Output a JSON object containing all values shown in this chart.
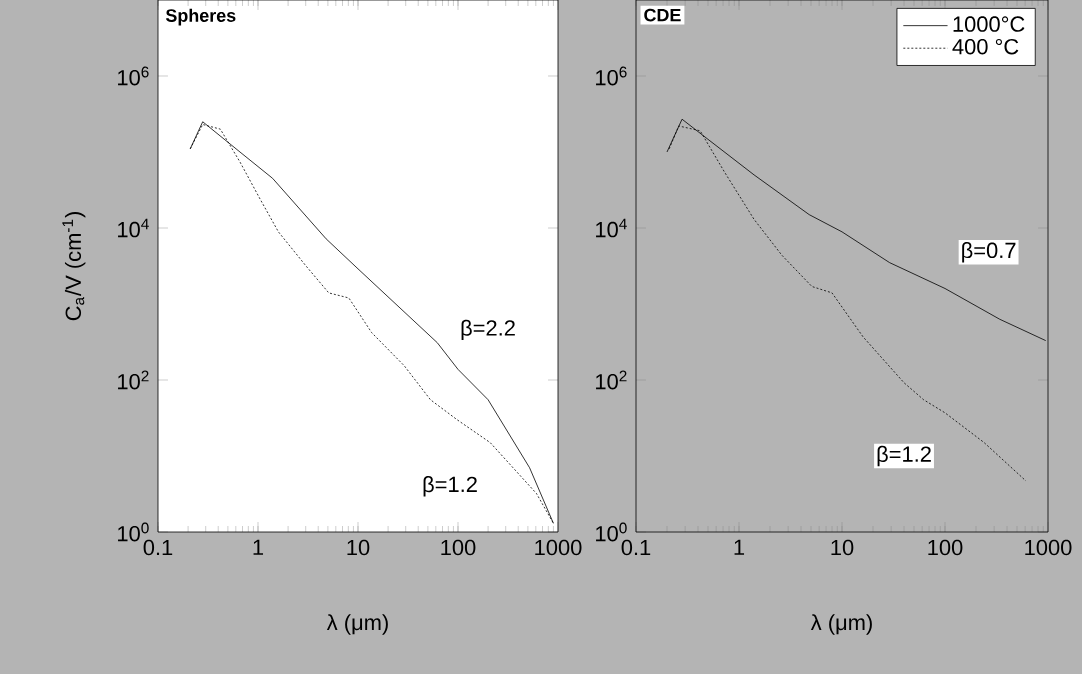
{
  "chart_data": [
    {
      "type": "line",
      "title": "Spheres",
      "xlabel": "λ  (μm)",
      "ylabel": "C$_{a}$/V  (cm$^{-1}$)",
      "log": "xy",
      "xlim": [
        0.1,
        1000
      ],
      "ylim": [
        1,
        10000000
      ],
      "xticks": [
        0.1,
        1,
        10,
        100,
        1000
      ],
      "yticks": [
        {
          "value": 1,
          "label": "10$^{0}$"
        },
        {
          "value": 100,
          "label": "10$^{2}$"
        },
        {
          "value": 10000,
          "label": "10$^{4}$"
        },
        {
          "value": 1000000,
          "label": "10$^{6}$"
        }
      ],
      "series": [
        {
          "color": "#000000",
          "line_style": "solid",
          "x": [
            0.21,
            0.28,
            0.66,
            1.4,
            4.8,
            10,
            62,
            100,
            200,
            520,
            900
          ],
          "values": [
            110000,
            250000,
            100000,
            45000,
            7200,
            2900,
            310,
            138,
            55,
            7,
            1.3
          ]
        },
        {
          "color": "#000000",
          "line_style": "dotted",
          "x": [
            0.21,
            0.28,
            0.42,
            0.66,
            1.05,
            1.6,
            3.0,
            5.1,
            8.1,
            13.7,
            29,
            53,
            98,
            210,
            610,
            900
          ],
          "values": [
            110000,
            230000,
            200000,
            74000,
            24000,
            8900,
            3200,
            1400,
            1200,
            420,
            154,
            55,
            30,
            15,
            3.2,
            1.3
          ]
        }
      ],
      "annotations": [
        "β=2.2",
        "β=1.2"
      ]
    },
    {
      "type": "line",
      "title": "CDE",
      "xlabel": "λ  (μm)",
      "log": "xy",
      "legend": "top right",
      "xlim": [
        0.1,
        1000
      ],
      "ylim": [
        1,
        10000000
      ],
      "xticks": [
        0.1,
        1,
        10,
        100,
        1000
      ],
      "yticks": [
        {
          "value": 1,
          "label": "10$^{0}$"
        },
        {
          "value": 100,
          "label": "10$^{2}$"
        },
        {
          "value": 10000,
          "label": "10$^{4}$"
        },
        {
          "value": 1000000,
          "label": "10$^{6}$"
        }
      ],
      "series": [
        {
          "name": "1000°C",
          "color": "#000000",
          "line_style": "solid",
          "x": [
            0.2,
            0.28,
            0.49,
            1.4,
            4.8,
            10,
            29,
            100,
            340,
            950
          ],
          "values": [
            100000,
            270000,
            150000,
            50000,
            15000,
            8900,
            3500,
            1600,
            630,
            330
          ]
        },
        {
          "name": "400 °C",
          "color": "#000000",
          "line_style": "dotted",
          "x": [
            0.21,
            0.26,
            0.42,
            0.72,
            1.4,
            2.6,
            5.1,
            8,
            16,
            40,
            62,
            100,
            240,
            610
          ],
          "values": [
            110000,
            220000,
            190000,
            55000,
            13000,
            4400,
            1700,
            1400,
            370,
            92,
            55,
            37,
            15,
            4.7
          ]
        }
      ],
      "annotations": [
        {
          "text": "β=0.7",
          "x": 265,
          "y": 4800
        },
        {
          "text": "β=1.2",
          "x": 40,
          "y": 10
        }
      ]
    }
  ]
}
